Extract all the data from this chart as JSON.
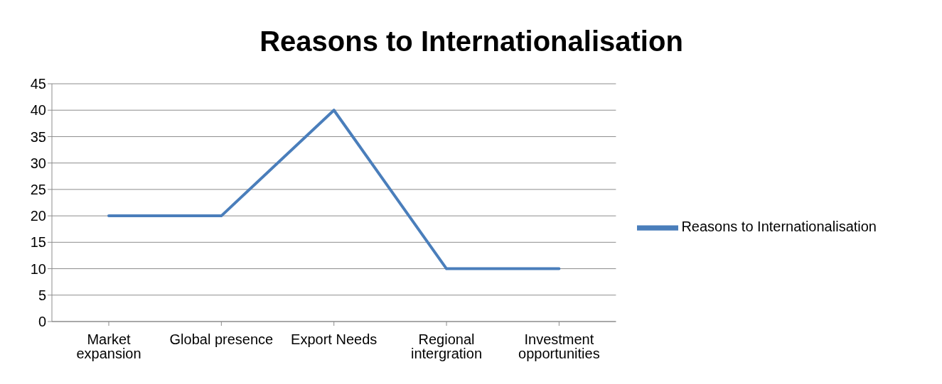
{
  "chart_data": {
    "type": "line",
    "title": "Reasons to Internationalisation",
    "categories": [
      "Market expansion",
      "Global presence",
      "Export Needs",
      "Regional intergration",
      "Investment opportunities"
    ],
    "series": [
      {
        "name": "Reasons to Internationalisation",
        "color": "#4a7ebb",
        "values": [
          20,
          20,
          40,
          10,
          10
        ]
      }
    ],
    "ylim": [
      0,
      45
    ],
    "yticks": [
      0,
      5,
      10,
      15,
      20,
      25,
      30,
      35,
      40,
      45
    ],
    "grid": "y",
    "legend": "right",
    "marker": "none",
    "line_style": "solid"
  }
}
